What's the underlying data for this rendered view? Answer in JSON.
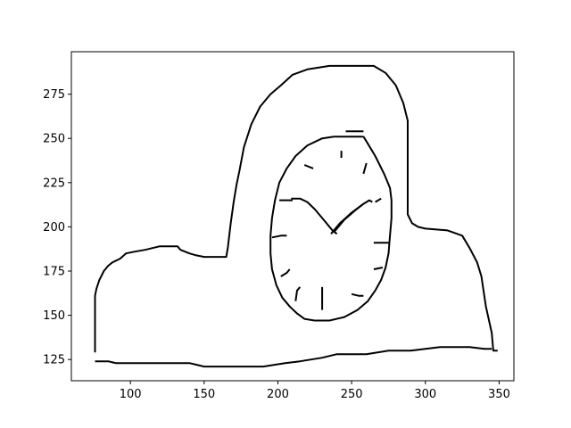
{
  "chart_data": {
    "type": "line",
    "title": "",
    "xlabel": "",
    "ylabel": "",
    "xlim": [
      60,
      360
    ],
    "ylim": [
      113,
      299
    ],
    "grid": false,
    "legend": "none",
    "line_color": "#000000",
    "x_ticks": [
      100,
      150,
      200,
      250,
      300,
      350
    ],
    "y_ticks": [
      125,
      150,
      175,
      200,
      225,
      250,
      275
    ],
    "series": [
      {
        "points": [
          [
            76,
            129
          ],
          [
            76,
            161
          ],
          [
            77,
            165
          ],
          [
            79,
            170
          ],
          [
            82,
            175
          ],
          [
            85,
            178
          ],
          [
            88,
            180
          ],
          [
            93,
            182
          ],
          [
            97,
            185
          ],
          [
            103,
            186
          ],
          [
            110,
            187
          ],
          [
            115,
            188
          ],
          [
            120,
            189
          ],
          [
            132,
            189
          ],
          [
            134,
            187
          ],
          [
            137,
            186
          ],
          [
            140,
            185
          ],
          [
            144,
            184
          ],
          [
            150,
            183
          ],
          [
            160,
            183
          ],
          [
            165,
            183
          ],
          [
            166,
            188
          ],
          [
            168,
            202
          ],
          [
            170,
            214
          ],
          [
            172,
            224
          ],
          [
            174,
            232
          ],
          [
            177,
            245
          ],
          [
            182,
            258
          ],
          [
            188,
            268
          ],
          [
            195,
            275
          ],
          [
            202,
            280
          ],
          [
            210,
            286
          ],
          [
            220,
            289
          ],
          [
            235,
            291
          ],
          [
            250,
            291
          ],
          [
            265,
            291
          ],
          [
            273,
            287
          ],
          [
            280,
            280
          ],
          [
            285,
            270
          ],
          [
            288,
            260
          ],
          [
            288,
            235
          ],
          [
            288,
            207
          ],
          [
            291,
            202
          ],
          [
            295,
            200
          ],
          [
            300,
            199
          ],
          [
            315,
            198
          ],
          [
            325,
            195
          ],
          [
            330,
            188
          ],
          [
            335,
            180
          ],
          [
            338,
            172
          ],
          [
            341,
            155
          ],
          [
            345,
            140
          ],
          [
            346,
            130
          ],
          [
            349,
            130
          ]
        ]
      },
      {
        "points": [
          [
            76,
            124
          ],
          [
            85,
            124
          ],
          [
            90,
            123
          ],
          [
            100,
            123
          ],
          [
            120,
            123
          ],
          [
            140,
            123
          ],
          [
            145,
            122
          ],
          [
            150,
            121
          ],
          [
            170,
            121
          ],
          [
            190,
            121
          ],
          [
            205,
            123
          ],
          [
            215,
            124
          ],
          [
            230,
            126
          ],
          [
            240,
            128
          ],
          [
            260,
            128
          ],
          [
            275,
            130
          ],
          [
            290,
            130
          ],
          [
            300,
            131
          ],
          [
            310,
            132
          ],
          [
            320,
            132
          ],
          [
            330,
            132
          ],
          [
            340,
            131
          ],
          [
            345,
            131
          ]
        ]
      },
      {
        "points": [
          [
            258,
            251
          ],
          [
            238,
            251
          ],
          [
            230,
            250
          ],
          [
            220,
            246
          ],
          [
            212,
            240
          ],
          [
            206,
            233
          ],
          [
            201,
            225
          ],
          [
            198,
            215
          ],
          [
            196,
            205
          ],
          [
            195,
            195
          ],
          [
            195,
            185
          ],
          [
            196,
            176
          ],
          [
            199,
            167
          ],
          [
            203,
            160
          ],
          [
            208,
            155
          ],
          [
            213,
            151
          ],
          [
            218,
            148
          ],
          [
            225,
            147
          ],
          [
            235,
            147
          ],
          [
            245,
            149
          ],
          [
            254,
            153
          ],
          [
            261,
            158
          ],
          [
            266,
            164
          ],
          [
            270,
            170
          ],
          [
            273,
            177
          ],
          [
            275,
            185
          ],
          [
            276,
            195
          ],
          [
            277,
            205
          ],
          [
            277,
            215
          ],
          [
            276,
            222
          ],
          [
            272,
            230
          ],
          [
            266,
            240
          ],
          [
            261,
            247
          ],
          [
            258,
            251
          ]
        ]
      },
      {
        "points": [
          [
            246,
            254
          ],
          [
            258,
            254
          ]
        ]
      },
      {
        "points": [
          [
            201,
            215
          ],
          [
            210,
            215
          ]
        ]
      },
      {
        "points": [
          [
            209,
            216
          ],
          [
            215,
            216
          ],
          [
            220,
            214
          ],
          [
            225,
            210
          ],
          [
            230,
            205
          ],
          [
            233,
            202
          ],
          [
            237,
            198
          ],
          [
            240,
            196
          ]
        ]
      },
      {
        "points": [
          [
            236,
            196
          ],
          [
            242,
            202
          ],
          [
            250,
            208
          ],
          [
            258,
            213
          ],
          [
            262,
            215
          ],
          [
            264,
            214
          ]
        ]
      },
      {
        "points": [
          [
            238,
            197
          ],
          [
            245,
            204
          ],
          [
            252,
            209
          ],
          [
            258,
            213
          ]
        ]
      },
      {
        "points": [
          [
            243,
            239
          ],
          [
            243,
            243
          ]
        ]
      },
      {
        "points": [
          [
            218,
            235
          ],
          [
            224,
            233
          ]
        ]
      },
      {
        "points": [
          [
            258,
            230
          ],
          [
            260,
            236
          ]
        ]
      },
      {
        "points": [
          [
            266,
            214
          ],
          [
            270,
            216
          ]
        ]
      },
      {
        "points": [
          [
            265,
            191
          ],
          [
            275,
            191
          ]
        ]
      },
      {
        "points": [
          [
            196,
            194
          ],
          [
            202,
            195
          ],
          [
            206,
            195
          ]
        ]
      },
      {
        "points": [
          [
            265,
            176
          ],
          [
            271,
            177
          ]
        ]
      },
      {
        "points": [
          [
            202,
            172
          ],
          [
            206,
            174
          ],
          [
            208,
            176
          ]
        ]
      },
      {
        "points": [
          [
            212,
            158
          ],
          [
            213,
            164
          ],
          [
            215,
            166
          ]
        ]
      },
      {
        "points": [
          [
            230,
            153
          ],
          [
            230,
            166
          ]
        ]
      },
      {
        "points": [
          [
            250,
            162
          ],
          [
            255,
            161
          ],
          [
            258,
            161
          ]
        ]
      }
    ]
  }
}
